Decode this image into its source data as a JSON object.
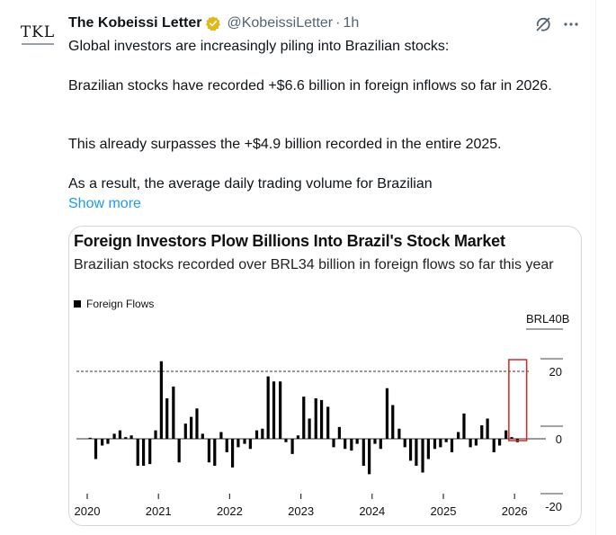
{
  "tweet": {
    "author_name": "The Kobeissi Letter",
    "verified_icon": "verified-gold-badge-icon",
    "handle": "@KobeissiLetter",
    "separator": "·",
    "time": "1h",
    "avatar_text": "TKL",
    "paragraphs": [
      "Global investors are increasingly piling into Brazilian stocks:",
      "Brazilian stocks have recorded +$6.6 billion in foreign inflows so far in 2026.",
      "This already surpasses the +$4.9 billion recorded in the entire 2025.",
      "As a result, the average daily trading volume for Brazilian"
    ],
    "show_more": "Show more",
    "icons": {
      "grok": "grok-icon",
      "more": "more-dots-icon"
    },
    "colors": {
      "link": "#1d9bf0",
      "muted": "#536471",
      "badge": "#e2b719",
      "highlight": "#d62728"
    }
  },
  "chart_data": {
    "type": "bar",
    "title": "Foreign Investors Plow Billions Into Brazil's Stock Market",
    "subtitle": "Brazilian stocks recorded over BRL34 billion in foreign flows so far this year",
    "legend": "Foreign Flows",
    "unit_label": "BRL40B",
    "y_ticks": [
      20,
      0,
      -20
    ],
    "y_tick_labels": [
      "20",
      "0",
      "-20"
    ],
    "ylim": [
      -25,
      40
    ],
    "reference_line": 20,
    "x_ticks": [
      "2020",
      "2021",
      "2022",
      "2023",
      "2024",
      "2025",
      "2026"
    ],
    "x_range": [
      2020.0,
      2026.25
    ],
    "highlight_range": [
      2025.92,
      2026.17
    ],
    "series": [
      {
        "x": [
          2020.04,
          2020.12,
          2020.21,
          2020.29,
          2020.38,
          2020.46,
          2020.54,
          2020.62,
          2020.71,
          2020.79,
          2020.88,
          2020.96,
          2021.04,
          2021.12,
          2021.21,
          2021.29,
          2021.38,
          2021.46,
          2021.54,
          2021.62,
          2021.71,
          2021.79,
          2021.88,
          2021.96,
          2022.04,
          2022.12,
          2022.21,
          2022.29,
          2022.38,
          2022.46,
          2022.54,
          2022.62,
          2022.71,
          2022.79,
          2022.88,
          2022.96,
          2023.04,
          2023.12,
          2023.21,
          2023.29,
          2023.38,
          2023.46,
          2023.54,
          2023.62,
          2023.71,
          2023.79,
          2023.88,
          2023.96,
          2024.04,
          2024.12,
          2024.21,
          2024.29,
          2024.38,
          2024.46,
          2024.54,
          2024.62,
          2024.71,
          2024.79,
          2024.88,
          2024.96,
          2025.04,
          2025.12,
          2025.21,
          2025.29,
          2025.38,
          2025.46,
          2025.54,
          2025.62,
          2025.71,
          2025.79,
          2025.88,
          2025.96,
          2026.04
        ],
        "values": [
          0.3,
          -6,
          -2,
          -1.5,
          1.5,
          2.5,
          0.5,
          1,
          -8,
          -8,
          -7.5,
          2.5,
          23,
          12,
          15.5,
          -7,
          4.5,
          6.5,
          9,
          1.5,
          -7,
          -8,
          2,
          -4,
          -8.5,
          -2.5,
          -1.5,
          -3,
          2.5,
          3,
          18.5,
          17,
          17,
          -1,
          -4.5,
          1,
          12.5,
          6,
          12,
          11.5,
          9.5,
          -2.5,
          3.5,
          -3,
          -3.5,
          -1.5,
          -8,
          -10.5,
          -1.5,
          -3,
          15,
          10,
          3,
          -2.5,
          -6.5,
          -8,
          -10,
          -6,
          -3,
          -2.5,
          -1,
          -4,
          2,
          7.5,
          -2.5,
          -2,
          4,
          6,
          -4,
          -2,
          2.5,
          0.5,
          -1
        ]
      }
    ]
  }
}
